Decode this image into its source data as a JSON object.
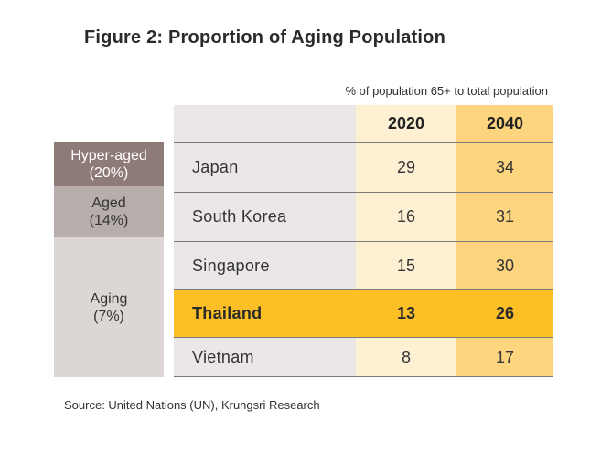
{
  "colors": {
    "hyper_aged_band": "#8e7b77",
    "aged_band": "#b7aeac",
    "aging_band": "#dcd6d4",
    "country_column": "#ebe7e6",
    "col_2020": "#fdf0d3",
    "col_2040": "#fdd57f",
    "highlight_row": "#fcbf26",
    "separator": "#7a7a7a"
  },
  "chart_data": {
    "type": "table",
    "title": "Figure 2: Proportion of Aging Population",
    "subtitle": "% of population 65+ to total population",
    "columns": [
      "2020",
      "2040"
    ],
    "rows": [
      {
        "country": "Japan",
        "values": [
          29,
          34
        ],
        "highlight": false
      },
      {
        "country": "South Korea",
        "values": [
          16,
          31
        ],
        "highlight": false
      },
      {
        "country": "Singapore",
        "values": [
          15,
          30
        ],
        "highlight": false
      },
      {
        "country": "Thailand",
        "values": [
          13,
          26
        ],
        "highlight": true
      },
      {
        "country": "Vietnam",
        "values": [
          8,
          17
        ],
        "highlight": false
      }
    ],
    "categories": [
      {
        "label": "Hyper-aged\n(20%)",
        "rows": [
          "Japan"
        ]
      },
      {
        "label": "Aged\n(14%)",
        "rows": [
          "South Korea"
        ]
      },
      {
        "label": "Aging\n(7%)",
        "rows": [
          "Singapore",
          "Thailand",
          "Vietnam"
        ]
      }
    ],
    "source": "Source: United Nations (UN), Krungsri Research"
  }
}
